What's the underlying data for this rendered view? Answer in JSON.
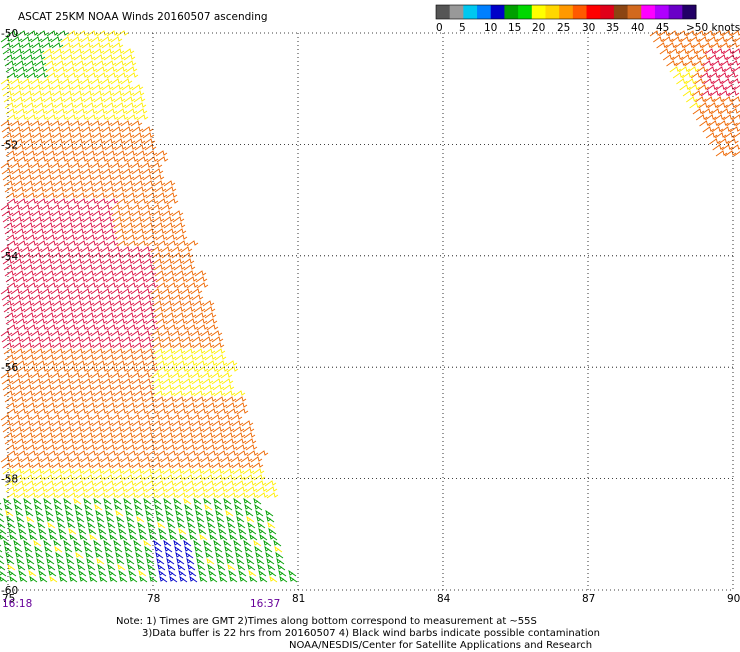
{
  "title": "ASCAT 25KM NOAA Winds 20160507 ascending",
  "legend": {
    "colors": [
      "#555555",
      "#999999",
      "#00c8f0",
      "#0080ff",
      "#0000c8",
      "#00a000",
      "#00d800",
      "#ffff00",
      "#ffd700",
      "#ff9900",
      "#ff5a00",
      "#ff0000",
      "#e0001a",
      "#8b4513",
      "#d2691e",
      "#ff00ff",
      "#b000ff",
      "#6a00c8",
      "#220066"
    ],
    "labels": [
      "0",
      "5",
      "10",
      "15",
      "20",
      "25",
      "30",
      "35",
      "40",
      "45",
      ">50 knots"
    ]
  },
  "y_ticks": [
    "-50",
    "-52",
    "-54",
    "-56",
    "-58",
    "-60"
  ],
  "x_ticks": [
    "75",
    "78",
    "81",
    "84",
    "87",
    "90"
  ],
  "times": {
    "left": "16:18",
    "right": "16:37"
  },
  "notes": [
    "Note: 1) Times are GMT 2)Times along bottom correspond to measurement at ~55S",
    "3)Data buffer is 22 hrs from 20160507 4) Black wind barbs indicate possible contamination",
    "NOAA/NESDIS/Center for Satellite Applications and Research"
  ],
  "map_data": {
    "lon_range": [
      75,
      90
    ],
    "lat_range": [
      -60,
      -50
    ],
    "grid": true,
    "barb_colors": {
      "green": "#00a000",
      "yellow": "#ffee00",
      "orange": "#ee6600",
      "red": "#dd1144",
      "blue": "#0000cc"
    }
  }
}
